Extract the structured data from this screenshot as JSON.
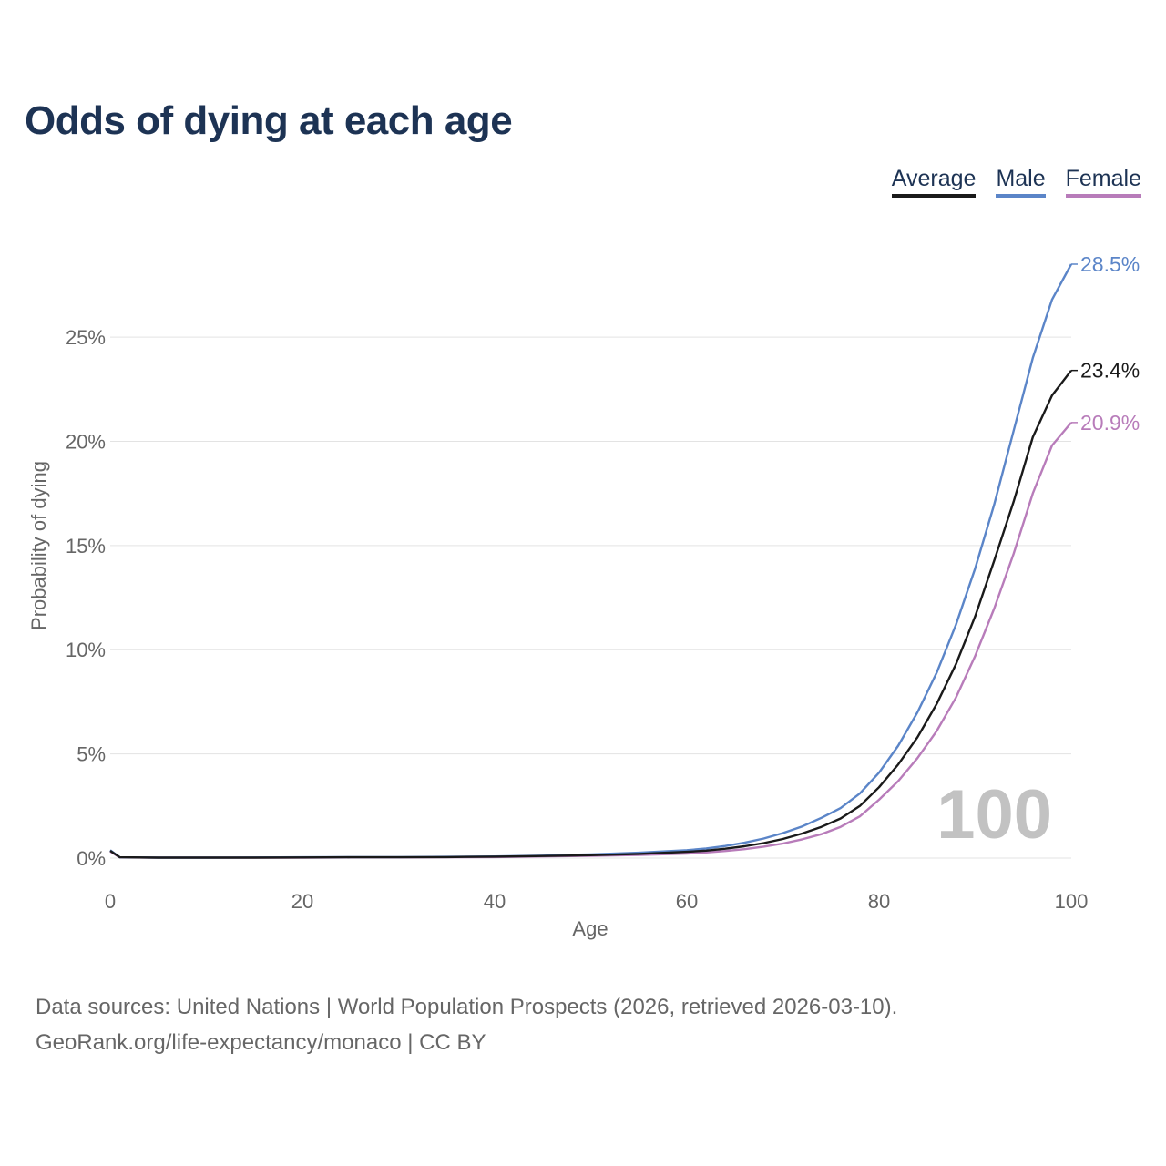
{
  "title": "Odds of dying at each age",
  "legend": [
    {
      "label": "Average",
      "color": "#1a1a1a"
    },
    {
      "label": "Male",
      "color": "#5b85c8"
    },
    {
      "label": "Female",
      "color": "#b87cba"
    }
  ],
  "footer": {
    "line1": "Data sources: United Nations | World Population Prospects (2026, retrieved 2026-03-10).",
    "line2": "GeoRank.org/life-expectancy/monaco | CC BY"
  },
  "chart_data": {
    "type": "line",
    "title": "Odds of dying at each age",
    "xlabel": "Age",
    "ylabel": "Probability of dying",
    "xlim": [
      0,
      100
    ],
    "ylim": [
      0,
      28.5
    ],
    "x_ticks": [
      0,
      20,
      40,
      60,
      80,
      100
    ],
    "y_ticks": [
      0,
      5,
      10,
      15,
      20,
      25
    ],
    "x_tick_labels": [
      "0",
      "20",
      "40",
      "60",
      "80",
      "100"
    ],
    "y_tick_labels": [
      "0%",
      "5%",
      "10%",
      "15%",
      "20%",
      "25%"
    ],
    "grid": true,
    "legend_position": "top-right",
    "highlight_label": "100",
    "x": [
      0,
      1,
      5,
      10,
      15,
      20,
      25,
      30,
      35,
      40,
      45,
      50,
      55,
      60,
      62,
      64,
      66,
      68,
      70,
      72,
      74,
      76,
      78,
      80,
      82,
      84,
      86,
      88,
      90,
      92,
      94,
      96,
      98,
      100
    ],
    "series": [
      {
        "name": "Average",
        "color": "#1a1a1a",
        "end_label": "23.4%",
        "values": [
          0.35,
          0.04,
          0.02,
          0.02,
          0.02,
          0.03,
          0.04,
          0.04,
          0.05,
          0.07,
          0.1,
          0.14,
          0.2,
          0.3,
          0.36,
          0.45,
          0.57,
          0.72,
          0.92,
          1.18,
          1.5,
          1.9,
          2.5,
          3.4,
          4.5,
          5.8,
          7.4,
          9.3,
          11.6,
          14.3,
          17.1,
          20.2,
          22.2,
          23.4
        ]
      },
      {
        "name": "Male",
        "color": "#5b85c8",
        "end_label": "28.5%",
        "values": [
          0.38,
          0.04,
          0.02,
          0.02,
          0.03,
          0.04,
          0.05,
          0.05,
          0.06,
          0.08,
          0.12,
          0.18,
          0.26,
          0.38,
          0.46,
          0.58,
          0.74,
          0.94,
          1.2,
          1.52,
          1.93,
          2.4,
          3.1,
          4.1,
          5.4,
          7.0,
          8.9,
          11.2,
          13.9,
          17.0,
          20.5,
          24.0,
          26.8,
          28.5
        ]
      },
      {
        "name": "Female",
        "color": "#b87cba",
        "end_label": "20.9%",
        "values": [
          0.32,
          0.03,
          0.02,
          0.02,
          0.02,
          0.02,
          0.03,
          0.03,
          0.04,
          0.05,
          0.08,
          0.11,
          0.15,
          0.22,
          0.27,
          0.34,
          0.43,
          0.55,
          0.7,
          0.9,
          1.15,
          1.5,
          2.0,
          2.8,
          3.7,
          4.8,
          6.1,
          7.7,
          9.7,
          12.0,
          14.6,
          17.5,
          19.8,
          20.9
        ]
      }
    ]
  }
}
